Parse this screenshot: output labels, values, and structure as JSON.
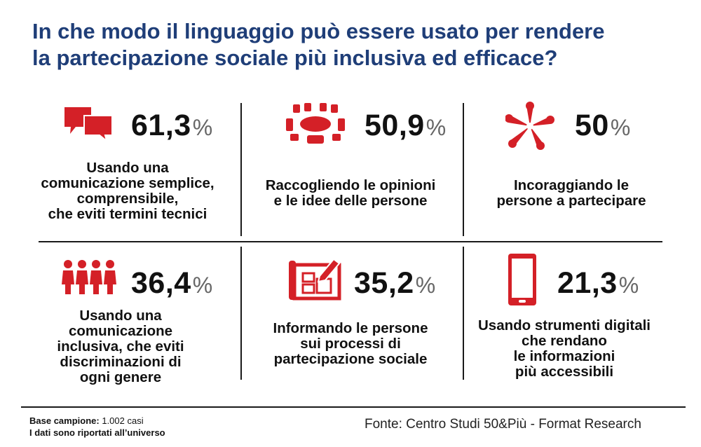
{
  "title_lines": [
    "In che modo il linguaggio può essere usato per rendere",
    "la partecipazione sociale più inclusiva ed efficace?"
  ],
  "colors": {
    "title": "#1f3e78",
    "accent": "#d42027",
    "text": "#111111"
  },
  "cells": [
    {
      "icon": "speech-bubbles-icon",
      "value": "61,3",
      "unit": "%",
      "lines": [
        "Usando una",
        "comunicazione semplice,",
        "comprensibile,",
        "che eviti termini tecnici"
      ]
    },
    {
      "icon": "meeting-table-icon",
      "value": "50,9",
      "unit": "%",
      "lines": [
        "Raccogliendo le opinioni",
        "e le idee delle persone"
      ]
    },
    {
      "icon": "joined-hands-icon",
      "value": "50",
      "unit": "%",
      "lines": [
        "Incoraggiando le",
        "persone a partecipare"
      ]
    },
    {
      "icon": "people-group-icon",
      "value": "36,4",
      "unit": "%",
      "lines": [
        "Usando una",
        "comunicazione",
        "inclusiva, che eviti",
        "discriminazioni di",
        "ogni genere"
      ]
    },
    {
      "icon": "planning-document-icon",
      "value": "35,2",
      "unit": "%",
      "lines": [
        "Informando le persone",
        "sui processi di",
        "partecipazione sociale"
      ]
    },
    {
      "icon": "smartphone-icon",
      "value": "21,3",
      "unit": "%",
      "lines": [
        "Usando strumenti digitali",
        "che rendano",
        "le informazioni",
        "più accessibili"
      ]
    }
  ],
  "chart_data": {
    "type": "table",
    "title": "In che modo il linguaggio può essere usato per rendere la partecipazione sociale più inclusiva ed efficace?",
    "categories": [
      "Usando una comunicazione semplice, comprensibile, che eviti termini tecnici",
      "Raccogliendo le opinioni e le idee delle persone",
      "Incoraggiando le persone a partecipare",
      "Usando una comunicazione inclusiva, che eviti discriminazioni di ogni genere",
      "Informando le persone sui processi di partecipazione sociale",
      "Usando strumenti digitali che rendano le informazioni più accessibili"
    ],
    "values": [
      61.3,
      50.9,
      50,
      36.4,
      35.2,
      21.3
    ]
  },
  "footer": {
    "base_label": "Base campione:",
    "base_value": "1.002 casi",
    "note_label": "I dati sono riportati",
    "note_value": "all’universo",
    "source": "Fonte: Centro Studi 50&Più - Format Research"
  }
}
